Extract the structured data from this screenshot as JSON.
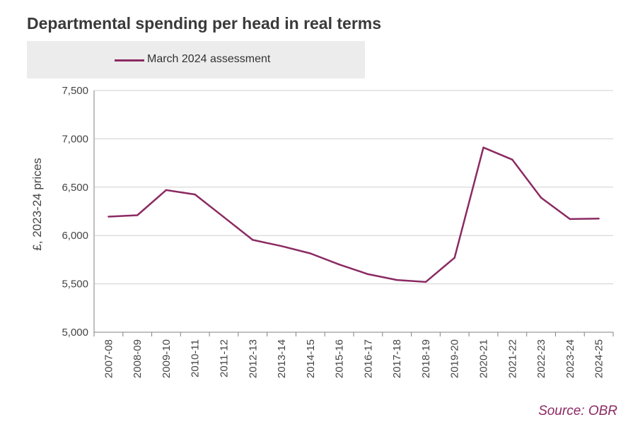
{
  "chart_data": {
    "type": "line",
    "title": "Departmental spending per head in real terms",
    "ylabel": "£, 2023-24 prices",
    "xlabel": "",
    "ylim": [
      5000,
      7500
    ],
    "yticks": [
      "5,000",
      "5,500",
      "6,000",
      "6,500",
      "7,000",
      "7,500"
    ],
    "ytick_values": [
      5000,
      5500,
      6000,
      6500,
      7000,
      7500
    ],
    "grid": true,
    "legend_position": "top-left",
    "categories": [
      "2007-08",
      "2008-09",
      "2009-10",
      "2010-11",
      "2011-12",
      "2012-13",
      "2013-14",
      "2014-15",
      "2015-16",
      "2016-17",
      "2017-18",
      "2018-19",
      "2019-20",
      "2020-21",
      "2021-22",
      "2022-23",
      "2023-24",
      "2024-25"
    ],
    "series": [
      {
        "name": "March 2024 assessment",
        "color": "#8b2a62",
        "values": [
          6195,
          6210,
          6470,
          6425,
          6190,
          5955,
          5890,
          5815,
          5700,
          5600,
          5540,
          5520,
          5770,
          6910,
          6785,
          6390,
          6170,
          6175
        ]
      }
    ],
    "source": "Source: OBR"
  }
}
